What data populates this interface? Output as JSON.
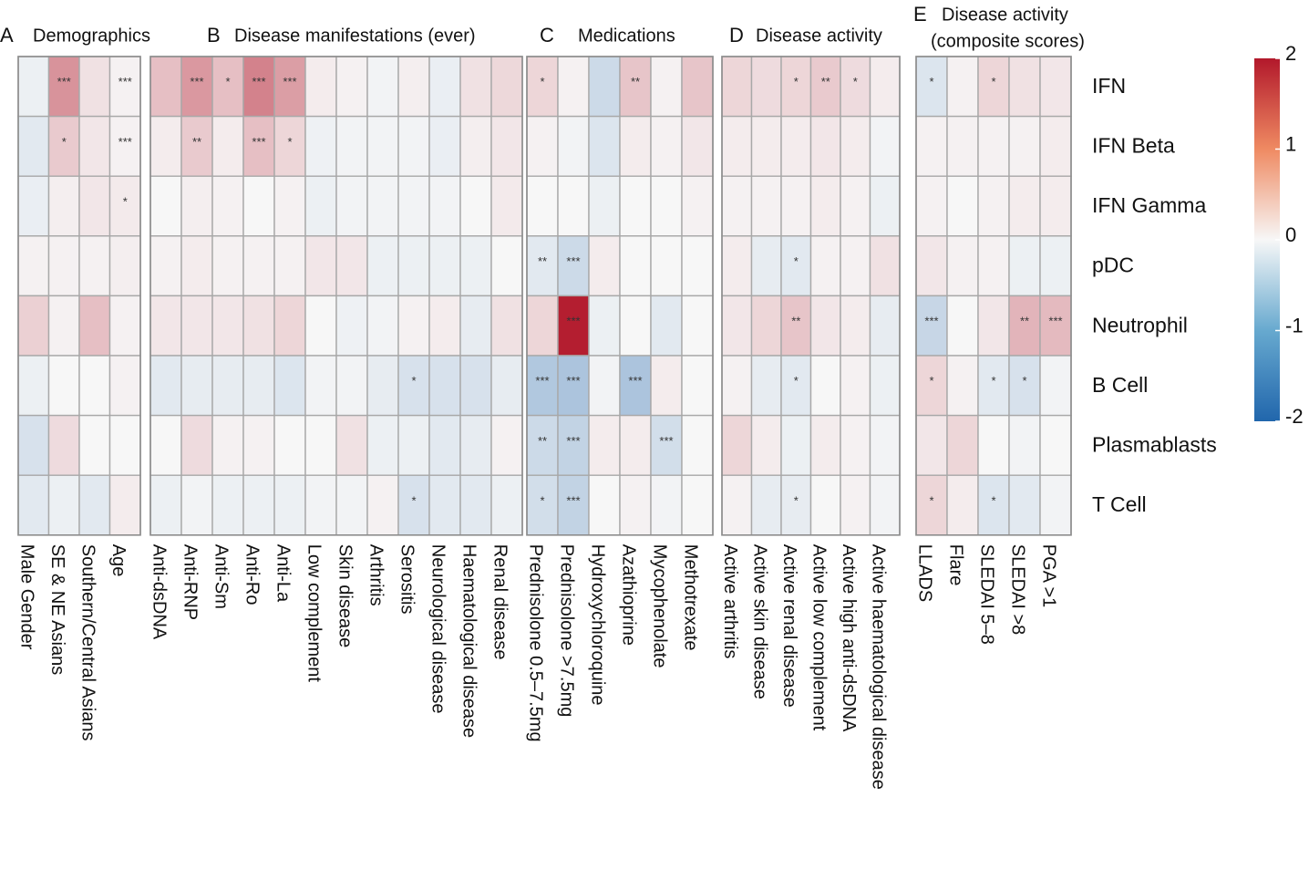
{
  "chart_data": {
    "type": "heatmap",
    "value_range": [
      -2,
      2
    ],
    "rows": [
      "IFN",
      "IFN Beta",
      "IFN Gamma",
      "pDC",
      "Neutrophil",
      "B Cell",
      "Plasmablasts",
      "T Cell"
    ],
    "colorbar": {
      "ticks": [
        2,
        1,
        0,
        -1,
        -2
      ],
      "tick_labels": [
        "2",
        "1",
        "0",
        "-1",
        "-2"
      ],
      "low_color": "#2166ac",
      "mid_color": "#f7f7f7",
      "high_color": "#b2182b"
    },
    "panels": [
      {
        "letter": "A",
        "title_lines": [
          "Demographics"
        ],
        "columns": [
          "Male Gender",
          "SE & NE Asians",
          "Southern/Central Asians",
          "Age"
        ],
        "values": [
          [
            -0.1,
            0.9,
            0.2,
            0.05
          ],
          [
            -0.2,
            0.4,
            0.15,
            0.05
          ],
          [
            -0.12,
            0.08,
            0.15,
            0.12
          ],
          [
            0.05,
            0.05,
            0.05,
            0.08
          ],
          [
            0.35,
            0.05,
            0.5,
            0.05
          ],
          [
            -0.1,
            0.0,
            0.0,
            0.05
          ],
          [
            -0.3,
            0.25,
            0.0,
            0.0
          ],
          [
            -0.2,
            -0.1,
            -0.2,
            0.1
          ]
        ],
        "stars": [
          [
            "",
            "***",
            "",
            "***"
          ],
          [
            "",
            "*",
            "",
            "***"
          ],
          [
            "",
            "",
            "",
            "*"
          ],
          [
            "",
            "",
            "",
            ""
          ],
          [
            "",
            "",
            "",
            ""
          ],
          [
            "",
            "",
            "",
            ""
          ],
          [
            "",
            "",
            "",
            ""
          ],
          [
            "",
            "",
            "",
            ""
          ]
        ]
      },
      {
        "letter": "B",
        "title_lines": [
          "Disease manifestations (ever)"
        ],
        "columns": [
          "Anti-dsDNA",
          "Anti-RNP",
          "Anti-Sm",
          "Anti-Ro",
          "Anti-La",
          "Low complement",
          "Skin disease",
          "Arthritis",
          "Serositis",
          "Neurological disease",
          "Haematological disease",
          "Renal disease"
        ],
        "values": [
          [
            0.5,
            0.85,
            0.5,
            1.05,
            0.8,
            0.1,
            0.05,
            -0.05,
            0.08,
            -0.12,
            0.2,
            0.28
          ],
          [
            0.1,
            0.4,
            0.1,
            0.5,
            0.3,
            -0.08,
            -0.05,
            -0.05,
            -0.05,
            -0.12,
            0.08,
            0.15
          ],
          [
            0.0,
            0.08,
            0.05,
            0.0,
            0.05,
            -0.1,
            -0.05,
            -0.05,
            -0.05,
            -0.05,
            0.0,
            0.12
          ],
          [
            0.05,
            0.1,
            0.05,
            0.05,
            0.05,
            0.15,
            0.15,
            -0.1,
            -0.1,
            -0.1,
            -0.1,
            0.0
          ],
          [
            0.15,
            0.15,
            0.15,
            0.2,
            0.3,
            0.0,
            -0.08,
            -0.05,
            0.05,
            0.1,
            -0.15,
            0.2
          ],
          [
            -0.2,
            -0.15,
            -0.15,
            -0.15,
            -0.25,
            -0.05,
            -0.05,
            -0.15,
            -0.3,
            -0.3,
            -0.3,
            -0.15
          ],
          [
            0.0,
            0.25,
            0.05,
            0.05,
            0.0,
            0.0,
            0.2,
            -0.1,
            -0.1,
            -0.2,
            -0.15,
            0.05
          ],
          [
            -0.1,
            -0.05,
            -0.1,
            -0.1,
            -0.1,
            -0.05,
            -0.05,
            0.05,
            -0.3,
            -0.2,
            -0.2,
            -0.1
          ]
        ],
        "stars": [
          [
            "",
            "***",
            "*",
            "***",
            "***",
            "",
            "",
            "",
            "",
            "",
            "",
            ""
          ],
          [
            "",
            "**",
            "",
            "***",
            "*",
            "",
            "",
            "",
            "",
            "",
            "",
            ""
          ],
          [
            "",
            "",
            "",
            "",
            "",
            "",
            "",
            "",
            "",
            "",
            "",
            ""
          ],
          [
            "",
            "",
            "",
            "",
            "",
            "",
            "",
            "",
            "",
            "",
            "",
            ""
          ],
          [
            "",
            "",
            "",
            "",
            "",
            "",
            "",
            "",
            "",
            "",
            "",
            ""
          ],
          [
            "",
            "",
            "",
            "",
            "",
            "",
            "",
            "",
            "*",
            "",
            "",
            ""
          ],
          [
            "",
            "",
            "",
            "",
            "",
            "",
            "",
            "",
            "",
            "",
            "",
            ""
          ],
          [
            "",
            "",
            "",
            "",
            "",
            "",
            "",
            "",
            "*",
            "",
            "",
            ""
          ]
        ]
      },
      {
        "letter": "C",
        "title_lines": [
          "Medications"
        ],
        "columns": [
          "Prednisolone 0.5–7.5mg",
          "Prednisolone >7.5mg",
          "Hydroxychloroquine",
          "Azathioprine",
          "Mycophenolate",
          "Methotrexate"
        ],
        "values": [
          [
            0.3,
            0.05,
            -0.4,
            0.45,
            0.05,
            0.45
          ],
          [
            0.05,
            -0.05,
            -0.25,
            0.1,
            0.05,
            0.15
          ],
          [
            0.0,
            0.0,
            -0.1,
            0.0,
            0.0,
            0.05
          ],
          [
            -0.2,
            -0.4,
            0.1,
            0.0,
            0.0,
            0.0
          ],
          [
            0.3,
            1.95,
            -0.1,
            0.0,
            -0.2,
            0.0
          ],
          [
            -0.65,
            -0.7,
            -0.05,
            -0.7,
            0.1,
            0.0
          ],
          [
            -0.4,
            -0.5,
            0.1,
            0.1,
            -0.35,
            0.0
          ],
          [
            -0.35,
            -0.5,
            0.0,
            0.05,
            -0.05,
            0.0
          ]
        ],
        "stars": [
          [
            "*",
            "",
            "",
            "**",
            "",
            ""
          ],
          [
            "",
            "",
            "",
            "",
            "",
            ""
          ],
          [
            "",
            "",
            "",
            "",
            "",
            ""
          ],
          [
            "**",
            "***",
            "",
            "",
            "",
            ""
          ],
          [
            "",
            "***",
            "",
            "",
            "",
            ""
          ],
          [
            "***",
            "***",
            "",
            "***",
            "",
            ""
          ],
          [
            "**",
            "***",
            "",
            "",
            "***",
            ""
          ],
          [
            "*",
            "***",
            "",
            "",
            "",
            ""
          ]
        ]
      },
      {
        "letter": "D",
        "title_lines": [
          "Disease activity"
        ],
        "columns": [
          "Active arthritis",
          "Active skin disease",
          "Active renal disease",
          "Active low complement",
          "Active high anti-dsDNA",
          "Active haematological disease"
        ],
        "values": [
          [
            0.3,
            0.25,
            0.3,
            0.4,
            0.25,
            0.1
          ],
          [
            0.1,
            0.1,
            0.1,
            0.15,
            0.1,
            -0.05
          ],
          [
            0.05,
            0.05,
            0.05,
            0.1,
            0.05,
            -0.1
          ],
          [
            0.1,
            -0.15,
            -0.2,
            0.05,
            0.05,
            0.2
          ],
          [
            0.15,
            0.3,
            0.45,
            0.15,
            0.1,
            -0.15
          ],
          [
            0.05,
            -0.15,
            -0.2,
            0.0,
            0.05,
            -0.1
          ],
          [
            0.3,
            0.1,
            -0.1,
            0.1,
            0.05,
            -0.05
          ],
          [
            0.05,
            -0.15,
            -0.15,
            0.0,
            0.05,
            -0.05
          ]
        ],
        "stars": [
          [
            "",
            "",
            "*",
            "**",
            "*",
            ""
          ],
          [
            "",
            "",
            "",
            "",
            "",
            ""
          ],
          [
            "",
            "",
            "",
            "",
            "",
            ""
          ],
          [
            "",
            "",
            "*",
            "",
            "",
            ""
          ],
          [
            "",
            "",
            "**",
            "",
            "",
            ""
          ],
          [
            "",
            "",
            "*",
            "",
            "",
            ""
          ],
          [
            "",
            "",
            "",
            "",
            "",
            ""
          ],
          [
            "",
            "",
            "*",
            "",
            "",
            ""
          ]
        ]
      },
      {
        "letter": "E",
        "title_lines": [
          "Disease activity",
          "(composite scores)"
        ],
        "columns": [
          "LLADS",
          "Flare",
          "SLEDAI 5–8",
          "SLEDAI >8",
          "PGA >1"
        ],
        "values": [
          [
            -0.25,
            0.05,
            0.3,
            0.2,
            0.15
          ],
          [
            0.05,
            0.05,
            0.05,
            0.05,
            0.1
          ],
          [
            0.05,
            0.0,
            0.05,
            0.1,
            0.1
          ],
          [
            0.15,
            0.05,
            0.05,
            -0.1,
            -0.1
          ],
          [
            -0.45,
            0.0,
            0.15,
            0.6,
            0.55
          ],
          [
            0.3,
            0.05,
            -0.2,
            -0.3,
            -0.05
          ],
          [
            0.15,
            0.3,
            0.0,
            -0.05,
            0.0
          ],
          [
            0.3,
            0.1,
            -0.25,
            -0.2,
            -0.05
          ]
        ],
        "stars": [
          [
            "*",
            "",
            "*",
            "",
            ""
          ],
          [
            "",
            "",
            "",
            "",
            ""
          ],
          [
            "",
            "",
            "",
            "",
            ""
          ],
          [
            "",
            "",
            "",
            "",
            ""
          ],
          [
            "***",
            "",
            "",
            "**",
            "***"
          ],
          [
            "*",
            "",
            "*",
            "*",
            ""
          ],
          [
            "",
            "",
            "",
            "",
            ""
          ],
          [
            "*",
            "",
            "*",
            "",
            ""
          ]
        ]
      }
    ]
  }
}
